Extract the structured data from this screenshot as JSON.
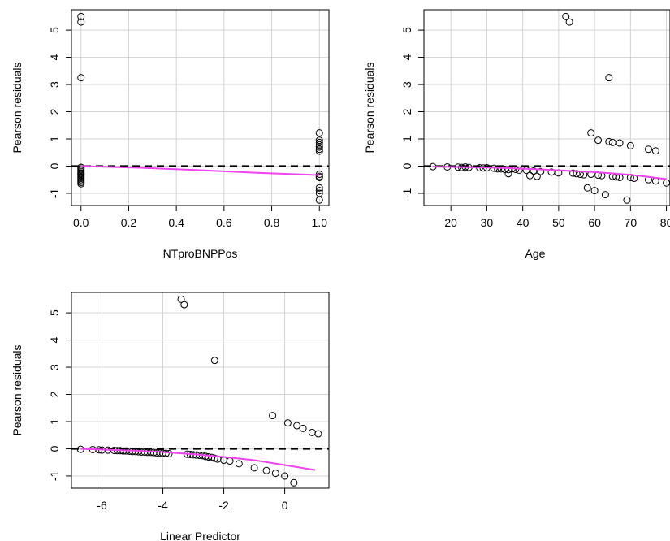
{
  "colors": {
    "points": "#000000",
    "smooth": "#ee44ee",
    "reference": "#000000",
    "grid": "#d3d3d3",
    "frame": "#000000"
  },
  "chart_data": [
    {
      "type": "scatter",
      "title": "",
      "xlabel": "NTproBNPPos",
      "ylabel": "Pearson residuals",
      "xlim": [
        -0.04,
        1.04
      ],
      "ylim": [
        -1.45,
        5.75
      ],
      "xticks": [
        0.0,
        0.2,
        0.4,
        0.6,
        0.8,
        1.0
      ],
      "xtick_labels": [
        "0.0",
        "0.2",
        "0.4",
        "0.6",
        "0.8",
        "1.0"
      ],
      "yticks": [
        -1,
        0,
        1,
        2,
        3,
        4,
        5
      ],
      "ytick_labels": [
        "-1",
        "0",
        "1",
        "2",
        "3",
        "4",
        "5"
      ],
      "grid": true,
      "reference_line_y": 0,
      "points": {
        "x": [
          0,
          0,
          0,
          0,
          0,
          0,
          0,
          0,
          0,
          0,
          0,
          0,
          0,
          0,
          0,
          0,
          0,
          0,
          1,
          1,
          1,
          1,
          1,
          1,
          1,
          1,
          1,
          1,
          1,
          1,
          1,
          1
        ],
        "y": [
          5.5,
          5.3,
          3.25,
          -0.05,
          -0.1,
          -0.15,
          -0.2,
          -0.25,
          -0.3,
          -0.35,
          -0.4,
          -0.45,
          -0.5,
          -0.55,
          -0.6,
          -0.65,
          -0.05,
          -0.3,
          1.22,
          0.95,
          0.87,
          0.78,
          0.7,
          0.62,
          0.55,
          -0.3,
          -0.38,
          -0.42,
          -0.8,
          -0.9,
          -1.0,
          -1.25
        ]
      },
      "smooth_line": {
        "x": [
          0,
          0.25,
          0.5,
          0.75,
          1.0
        ],
        "y": [
          0.0,
          -0.06,
          -0.15,
          -0.25,
          -0.33
        ]
      }
    },
    {
      "type": "scatter",
      "title": "",
      "xlabel": "Age",
      "ylabel": "Pearson residuals",
      "xlim": [
        12.5,
        81
      ],
      "ylim": [
        -1.45,
        5.75
      ],
      "xticks": [
        20,
        30,
        40,
        50,
        60,
        70,
        80
      ],
      "xtick_labels": [
        "20",
        "30",
        "40",
        "50",
        "60",
        "70",
        "80"
      ],
      "yticks": [
        -1,
        0,
        1,
        2,
        3,
        4,
        5
      ],
      "ytick_labels": [
        "-1",
        "0",
        "1",
        "2",
        "3",
        "4",
        "5"
      ],
      "grid": true,
      "reference_line_y": 0,
      "points": {
        "x": [
          15,
          19,
          22,
          23,
          24,
          25,
          28,
          29,
          30,
          32,
          33,
          34,
          35,
          36,
          36,
          37,
          38,
          39,
          41,
          42,
          43,
          44,
          45,
          48,
          50,
          52,
          53,
          54,
          55,
          56,
          57,
          58,
          59,
          60,
          61,
          62,
          63,
          64,
          65,
          66,
          67,
          69,
          70,
          71,
          75,
          77,
          80,
          59,
          61,
          64,
          65,
          67,
          70,
          75,
          77
        ],
        "y": [
          -0.02,
          -0.03,
          -0.04,
          -0.05,
          -0.03,
          -0.05,
          -0.06,
          -0.07,
          -0.06,
          -0.08,
          -0.1,
          -0.1,
          -0.12,
          -0.13,
          -0.28,
          -0.1,
          -0.12,
          -0.15,
          -0.15,
          -0.35,
          -0.18,
          -0.38,
          -0.2,
          -0.22,
          -0.25,
          5.5,
          5.3,
          -0.26,
          -0.28,
          -0.3,
          -0.32,
          -0.8,
          -0.3,
          -0.9,
          -0.33,
          -0.35,
          -1.05,
          3.25,
          -0.38,
          -0.4,
          -0.42,
          -1.25,
          -0.42,
          -0.45,
          -0.5,
          -0.55,
          -0.62,
          1.22,
          0.95,
          0.9,
          0.87,
          0.85,
          0.75,
          0.62,
          0.56
        ],
        "note_visible": false
      },
      "smooth_line": {
        "x": [
          15,
          30,
          45,
          60,
          70,
          80
        ],
        "y": [
          -0.02,
          -0.05,
          -0.12,
          -0.22,
          -0.32,
          -0.48
        ]
      }
    },
    {
      "type": "scatter",
      "title": "",
      "xlabel": "Linear Predictor",
      "ylabel": "Pearson residuals",
      "xlim": [
        -7.0,
        1.45
      ],
      "ylim": [
        -1.45,
        5.75
      ],
      "xticks": [
        -6,
        -4,
        -2,
        0
      ],
      "xtick_labels": [
        "-6",
        "-4",
        "-2",
        "0"
      ],
      "yticks": [
        -1,
        0,
        1,
        2,
        3,
        4,
        5
      ],
      "ytick_labels": [
        "-1",
        "0",
        "1",
        "2",
        "3",
        "4",
        "5"
      ],
      "grid": true,
      "reference_line_y": 0,
      "points": {
        "x": [
          -6.7,
          -6.3,
          -6.1,
          -6.0,
          -5.8,
          -5.6,
          -5.5,
          -5.4,
          -5.3,
          -5.2,
          -5.1,
          -5.0,
          -4.9,
          -4.8,
          -4.7,
          -4.6,
          -4.5,
          -4.4,
          -4.3,
          -4.2,
          -4.1,
          -4.0,
          -3.9,
          -3.8,
          -3.4,
          -3.3,
          -3.2,
          -3.1,
          -3.0,
          -2.9,
          -2.8,
          -2.7,
          -2.6,
          -2.5,
          -2.4,
          -2.3,
          -2.2,
          -2.0,
          -1.8,
          -1.5,
          -1.0,
          -0.6,
          -0.3,
          -2.3,
          -0.4,
          0.1,
          0.4,
          0.9,
          1.1,
          0.6,
          0.0,
          0.3
        ],
        "y": [
          -0.02,
          -0.03,
          -0.04,
          -0.05,
          -0.05,
          -0.06,
          -0.07,
          -0.07,
          -0.08,
          -0.08,
          -0.09,
          -0.1,
          -0.1,
          -0.11,
          -0.12,
          -0.12,
          -0.13,
          -0.13,
          -0.14,
          -0.15,
          -0.15,
          -0.16,
          -0.17,
          -0.18,
          5.5,
          5.3,
          -0.2,
          -0.21,
          -0.22,
          -0.23,
          -0.24,
          -0.25,
          -0.28,
          -0.3,
          -0.32,
          -0.35,
          -0.38,
          -0.42,
          -0.45,
          -0.55,
          -0.7,
          -0.8,
          -0.9,
          3.25,
          1.22,
          0.95,
          0.85,
          0.6,
          0.55,
          0.75,
          -1.0,
          -1.25
        ]
      },
      "smooth_line": {
        "x": [
          -6.7,
          -5,
          -4,
          -3,
          -2,
          -1,
          0,
          1
        ],
        "y": [
          0.0,
          -0.07,
          -0.12,
          -0.2,
          -0.3,
          -0.42,
          -0.6,
          -0.78
        ]
      }
    }
  ]
}
